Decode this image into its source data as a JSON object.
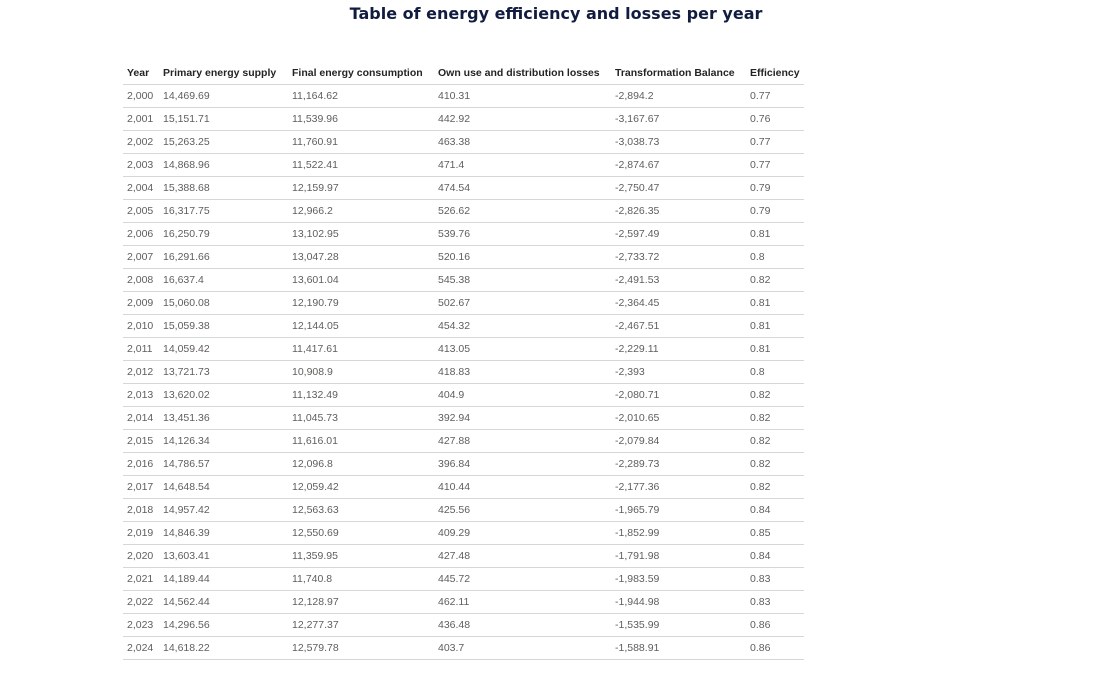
{
  "title": "Table of energy efficiency and losses per year",
  "table": {
    "columns": [
      "Year",
      "Primary energy supply",
      "Final energy consumption",
      "Own use and distribution losses",
      "Transformation Balance",
      "Efficiency"
    ],
    "rows": [
      [
        "2,000",
        "14,469.69",
        "11,164.62",
        "410.31",
        "-2,894.2",
        "0.77"
      ],
      [
        "2,001",
        "15,151.71",
        "11,539.96",
        "442.92",
        "-3,167.67",
        "0.76"
      ],
      [
        "2,002",
        "15,263.25",
        "11,760.91",
        "463.38",
        "-3,038.73",
        "0.77"
      ],
      [
        "2,003",
        "14,868.96",
        "11,522.41",
        "471.4",
        "-2,874.67",
        "0.77"
      ],
      [
        "2,004",
        "15,388.68",
        "12,159.97",
        "474.54",
        "-2,750.47",
        "0.79"
      ],
      [
        "2,005",
        "16,317.75",
        "12,966.2",
        "526.62",
        "-2,826.35",
        "0.79"
      ],
      [
        "2,006",
        "16,250.79",
        "13,102.95",
        "539.76",
        "-2,597.49",
        "0.81"
      ],
      [
        "2,007",
        "16,291.66",
        "13,047.28",
        "520.16",
        "-2,733.72",
        "0.8"
      ],
      [
        "2,008",
        "16,637.4",
        "13,601.04",
        "545.38",
        "-2,491.53",
        "0.82"
      ],
      [
        "2,009",
        "15,060.08",
        "12,190.79",
        "502.67",
        "-2,364.45",
        "0.81"
      ],
      [
        "2,010",
        "15,059.38",
        "12,144.05",
        "454.32",
        "-2,467.51",
        "0.81"
      ],
      [
        "2,011",
        "14,059.42",
        "11,417.61",
        "413.05",
        "-2,229.11",
        "0.81"
      ],
      [
        "2,012",
        "13,721.73",
        "10,908.9",
        "418.83",
        "-2,393",
        "0.8"
      ],
      [
        "2,013",
        "13,620.02",
        "11,132.49",
        "404.9",
        "-2,080.71",
        "0.82"
      ],
      [
        "2,014",
        "13,451.36",
        "11,045.73",
        "392.94",
        "-2,010.65",
        "0.82"
      ],
      [
        "2,015",
        "14,126.34",
        "11,616.01",
        "427.88",
        "-2,079.84",
        "0.82"
      ],
      [
        "2,016",
        "14,786.57",
        "12,096.8",
        "396.84",
        "-2,289.73",
        "0.82"
      ],
      [
        "2,017",
        "14,648.54",
        "12,059.42",
        "410.44",
        "-2,177.36",
        "0.82"
      ],
      [
        "2,018",
        "14,957.42",
        "12,563.63",
        "425.56",
        "-1,965.79",
        "0.84"
      ],
      [
        "2,019",
        "14,846.39",
        "12,550.69",
        "409.29",
        "-1,852.99",
        "0.85"
      ],
      [
        "2,020",
        "13,603.41",
        "11,359.95",
        "427.48",
        "-1,791.98",
        "0.84"
      ],
      [
        "2,021",
        "14,189.44",
        "11,740.8",
        "445.72",
        "-1,983.59",
        "0.83"
      ],
      [
        "2,022",
        "14,562.44",
        "12,128.97",
        "462.11",
        "-1,944.98",
        "0.83"
      ],
      [
        "2,023",
        "14,296.56",
        "12,277.37",
        "436.48",
        "-1,535.99",
        "0.86"
      ],
      [
        "2,024",
        "14,618.22",
        "12,579.78",
        "403.7",
        "-1,588.91",
        "0.86"
      ]
    ]
  }
}
